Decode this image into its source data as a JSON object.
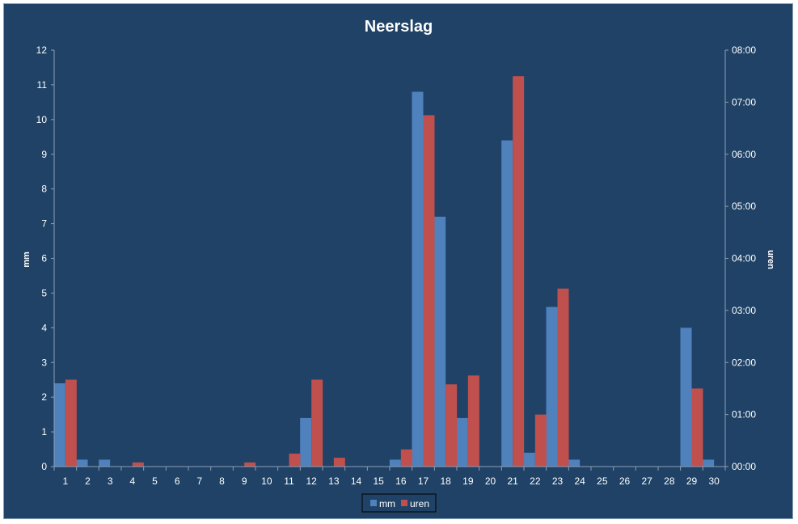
{
  "chart_data": {
    "type": "bar",
    "title": "Neerslag",
    "xlabel": "",
    "ylabel": "mm",
    "y2label": "uren",
    "categories": [
      "1",
      "2",
      "3",
      "4",
      "5",
      "6",
      "7",
      "8",
      "9",
      "10",
      "11",
      "12",
      "13",
      "14",
      "15",
      "16",
      "17",
      "18",
      "19",
      "20",
      "21",
      "22",
      "23",
      "24",
      "25",
      "26",
      "27",
      "28",
      "29",
      "30"
    ],
    "ylim": [
      0,
      12
    ],
    "yticks": [
      "0",
      "1",
      "2",
      "3",
      "4",
      "5",
      "6",
      "7",
      "8",
      "9",
      "10",
      "11",
      "12"
    ],
    "y2lim_hours": [
      0,
      8
    ],
    "y2ticks": [
      "00:00",
      "01:00",
      "02:00",
      "03:00",
      "04:00",
      "05:00",
      "06:00",
      "07:00",
      "08:00"
    ],
    "series": [
      {
        "name": "mm",
        "axis": "left",
        "color": "#4f81bd",
        "values": [
          2.4,
          0.2,
          0.2,
          0,
          0,
          0,
          0,
          0,
          0,
          0,
          0,
          1.4,
          0,
          0,
          0,
          0.2,
          10.8,
          7.2,
          1.4,
          0,
          9.4,
          0.4,
          4.6,
          0.2,
          0,
          0,
          0,
          0,
          4.0,
          0.2
        ]
      },
      {
        "name": "uren",
        "axis": "right",
        "unit": "hours",
        "color": "#c0504d",
        "values": [
          1.67,
          0,
          0,
          0.08,
          0,
          0,
          0,
          0,
          0.08,
          0,
          0.25,
          1.67,
          0.17,
          0,
          0,
          0.33,
          6.75,
          1.58,
          1.75,
          0,
          7.5,
          1.0,
          3.42,
          0,
          0,
          0,
          0,
          0,
          1.5,
          0
        ]
      }
    ],
    "grid": false,
    "legend": "bottom"
  }
}
